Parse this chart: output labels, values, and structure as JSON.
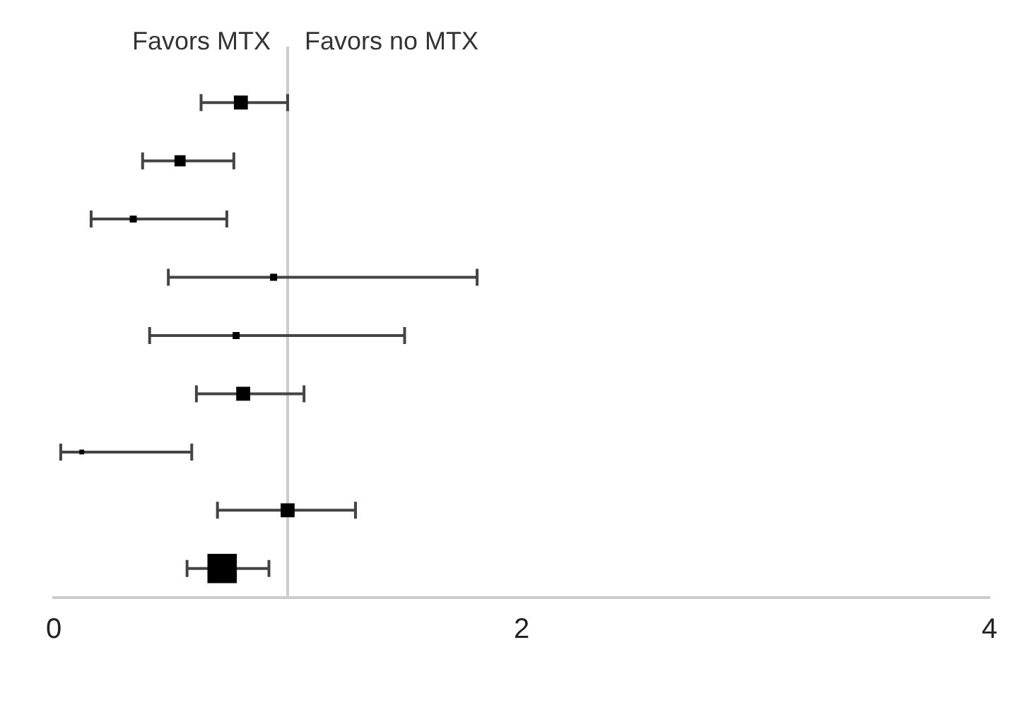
{
  "chart_data": {
    "type": "bubble",
    "orientation": "horizontal",
    "categories": [
      null,
      null,
      null,
      null,
      null,
      null,
      null,
      null,
      null
    ],
    "values": [
      0.8,
      0.54,
      0.34,
      0.94,
      0.78,
      0.81,
      0.12,
      1.0,
      0.72
    ],
    "errors": [
      [
        0.63,
        1.0
      ],
      [
        0.38,
        0.77
      ],
      [
        0.16,
        0.74
      ],
      [
        0.49,
        1.81
      ],
      [
        0.41,
        1.5
      ],
      [
        0.61,
        1.07
      ],
      [
        0.03,
        0.59
      ],
      [
        0.7,
        1.29
      ],
      [
        0.57,
        0.92
      ]
    ],
    "sizes": [
      0.2,
      0.12,
      0.04,
      0.04,
      0.04,
      0.2,
      0.015,
      0.2,
      1
    ],
    "color": "#000000",
    "marker": "square",
    "xlim": [
      0,
      4
    ],
    "xticks": [
      0,
      2,
      4
    ],
    "tick_labels": "x",
    "grid": false,
    "legend": false,
    "ref_lines": [
      {
        "axis": "x",
        "value": 1,
        "color": "#cccccc"
      }
    ],
    "annotations": [
      "Favors MTX",
      "Favors no MTX"
    ]
  }
}
